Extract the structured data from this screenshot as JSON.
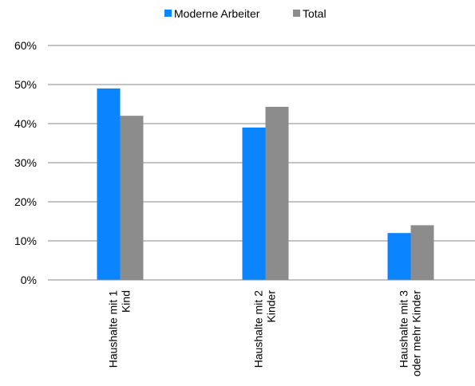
{
  "chart_data": {
    "type": "bar",
    "title": "",
    "xlabel": "",
    "ylabel": "",
    "categories": [
      [
        "Haushalte mit 1",
        "Kind"
      ],
      [
        "Haushalte mit 2",
        "Kinder"
      ],
      [
        "Haushalte mit 3",
        "oder mehr Kinder"
      ]
    ],
    "series": [
      {
        "name": "Moderne Arbeiter",
        "color": "#0A84FF",
        "values": [
          49,
          39,
          12
        ]
      },
      {
        "name": "Total",
        "color": "#8C8C8C",
        "values": [
          42,
          44.3,
          14
        ]
      }
    ],
    "ylim": [
      0,
      60
    ],
    "yticks": [
      0,
      10,
      20,
      30,
      40,
      50,
      60
    ],
    "ytick_labels": [
      "0%",
      "10%",
      "20%",
      "30%",
      "40%",
      "50%",
      "60%"
    ],
    "grid": true,
    "legend_position": "top-center"
  }
}
